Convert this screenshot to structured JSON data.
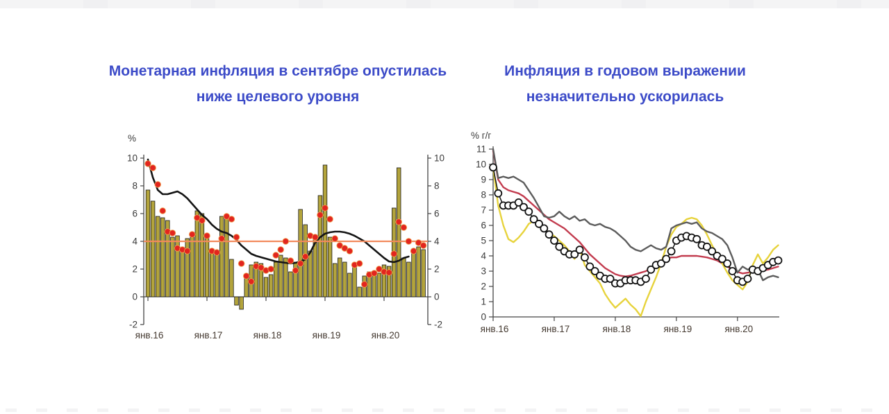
{
  "theme": {
    "title_color": "#3c4bc8",
    "axis_text_color": "#3a3a3a",
    "x_label_color": "#43382f",
    "background": "#ffffff"
  },
  "chart_data": [
    {
      "type": "bar",
      "title": "Монетарная инфляция в сентябре опустилась ниже целевого уровня",
      "ylabel": "%",
      "ylim": [
        -2,
        10
      ],
      "yticks": [
        10,
        8,
        6,
        4,
        2,
        0,
        -2
      ],
      "dual_y_axis": true,
      "grid": false,
      "legend": "none",
      "x_monthly_from": "янв.16",
      "x_monthly_to": "сен.20",
      "x_tick_labels": [
        "янв.16",
        "янв.17",
        "янв.18",
        "янв.19",
        "янв.20"
      ],
      "target_line": {
        "value": 4,
        "color": "#f28a5c"
      },
      "series": [
        {
          "name": "monthly-inflation-bars",
          "type": "bar",
          "color": "#b3a43c",
          "values": [
            7.7,
            6.9,
            5.8,
            5.7,
            5.5,
            4.3,
            4.4,
            3.5,
            4.2,
            4.3,
            6.2,
            6.0,
            4.2,
            3.4,
            3.3,
            5.8,
            5.9,
            2.7,
            -0.6,
            -0.9,
            1.6,
            2.3,
            2.5,
            2.4,
            1.4,
            1.6,
            2.5,
            3.0,
            2.8,
            1.8,
            2.5,
            6.3,
            5.2,
            3.3,
            4.4,
            7.3,
            9.5,
            4.3,
            2.4,
            2.8,
            2.5,
            1.7,
            2.2,
            0.7,
            1.5,
            1.8,
            1.6,
            1.7,
            2.3,
            2.2,
            6.4,
            9.3,
            2.8,
            2.5,
            3.2,
            3.6,
            3.4
          ]
        },
        {
          "name": "trend-line",
          "type": "line",
          "color": "#141414",
          "values": [
            9.9,
            8.6,
            7.7,
            7.4,
            7.4,
            7.5,
            7.6,
            7.4,
            7.1,
            6.7,
            6.3,
            5.9,
            5.6,
            5.2,
            4.9,
            4.7,
            4.6,
            4.4,
            4.1,
            3.7,
            3.4,
            3.1,
            2.95,
            2.85,
            2.75,
            2.65,
            2.55,
            2.5,
            2.45,
            2.4,
            2.45,
            2.55,
            2.7,
            3.2,
            3.9,
            4.3,
            4.55,
            4.65,
            4.7,
            4.7,
            4.65,
            4.55,
            4.4,
            4.2,
            4.0,
            3.7,
            3.4,
            3.1,
            2.8,
            2.55,
            2.5,
            2.6,
            2.8,
            2.9,
            null,
            null,
            null
          ]
        },
        {
          "name": "monthly-dots",
          "type": "scatter",
          "color": "#e2251f",
          "values": [
            9.6,
            9.3,
            8.1,
            6.2,
            4.7,
            4.6,
            3.5,
            3.4,
            3.3,
            4.5,
            5.7,
            5.5,
            4.4,
            3.3,
            3.2,
            4.2,
            5.8,
            5.6,
            4.3,
            2.4,
            1.5,
            1.1,
            2.2,
            2.1,
            1.9,
            2.0,
            3.0,
            3.4,
            4.0,
            2.6,
            1.9,
            2.4,
            2.9,
            4.4,
            4.3,
            5.9,
            6.4,
            5.6,
            4.2,
            3.7,
            3.5,
            3.3,
            2.3,
            2.4,
            0.9,
            1.6,
            1.7,
            2.0,
            1.8,
            1.75,
            3.1,
            5.4,
            5.0,
            4.0,
            3.3,
            3.9,
            3.7
          ]
        }
      ]
    },
    {
      "type": "line",
      "title": "Инфляция в годовом выражении незначительно ускорилась",
      "ylabel": "% г/г",
      "ylim": [
        0,
        11
      ],
      "yticks": [
        11,
        10,
        9,
        8,
        7,
        6,
        5,
        4,
        3,
        2,
        1,
        0
      ],
      "grid": false,
      "legend": "none",
      "x_monthly_from": "янв.16",
      "x_monthly_to": "сен.20",
      "x_tick_labels": [
        "янв.16",
        "янв.17",
        "янв.18",
        "янв.19",
        "янв.20"
      ],
      "series": [
        {
          "name": "red-line",
          "type": "line",
          "color": "#c23b4e",
          "values": [
            10.9,
            9.0,
            8.5,
            8.3,
            8.2,
            8.1,
            7.9,
            7.6,
            7.3,
            7.0,
            6.7,
            6.4,
            6.2,
            6.0,
            5.8,
            5.5,
            5.2,
            4.9,
            4.5,
            4.1,
            3.8,
            3.5,
            3.2,
            3.0,
            2.8,
            2.7,
            2.65,
            2.7,
            2.8,
            2.9,
            3.0,
            3.2,
            3.4,
            3.6,
            3.8,
            3.9,
            3.9,
            4.0,
            4.0,
            4.0,
            4.0,
            3.95,
            3.9,
            3.8,
            3.7,
            3.5,
            3.3,
            3.1,
            2.95,
            2.85,
            2.9,
            2.95,
            3.0,
            3.05,
            3.1,
            3.2,
            3.3
          ]
        },
        {
          "name": "yellow-line",
          "type": "line",
          "color": "#e7d33c",
          "values": [
            9.8,
            7.3,
            6.0,
            5.1,
            4.9,
            5.2,
            5.6,
            6.1,
            6.3,
            6.2,
            5.8,
            5.5,
            5.3,
            5.0,
            4.7,
            4.3,
            3.8,
            4.5,
            3.4,
            3.0,
            2.6,
            2.2,
            1.5,
            1.0,
            0.6,
            0.9,
            1.2,
            0.8,
            0.5,
            0.05,
            1.0,
            1.8,
            2.6,
            3.5,
            4.6,
            5.4,
            5.9,
            6.1,
            6.4,
            6.5,
            6.4,
            6.0,
            5.4,
            4.7,
            4.1,
            3.5,
            2.9,
            2.4,
            2.1,
            1.8,
            2.3,
            3.4,
            4.1,
            3.5,
            3.9,
            4.4,
            4.7
          ]
        },
        {
          "name": "gray-line",
          "type": "line",
          "color": "#5c5c5c",
          "values": [
            11.0,
            9.1,
            9.2,
            9.1,
            9.2,
            9.0,
            8.8,
            8.3,
            7.8,
            7.2,
            6.6,
            6.5,
            6.6,
            6.9,
            6.6,
            6.4,
            6.6,
            6.3,
            6.4,
            6.1,
            6.0,
            6.1,
            5.9,
            5.8,
            5.6,
            5.3,
            5.0,
            4.6,
            4.4,
            4.3,
            4.5,
            4.7,
            4.5,
            4.4,
            4.6,
            5.8,
            6.0,
            6.1,
            6.2,
            6.1,
            6.2,
            5.8,
            5.6,
            5.5,
            5.3,
            5.1,
            4.7,
            3.9,
            2.9,
            3.3,
            3.1,
            3.2,
            3.1,
            2.4,
            2.6,
            2.7,
            2.6
          ]
        },
        {
          "name": "cpi-circles",
          "type": "line+markers",
          "color": "#111111",
          "marker_fill": "#ffffff",
          "values": [
            9.8,
            8.1,
            7.3,
            7.3,
            7.3,
            7.5,
            7.2,
            6.9,
            6.4,
            6.1,
            5.8,
            5.4,
            5.0,
            4.6,
            4.3,
            4.1,
            4.1,
            4.4,
            3.9,
            3.3,
            3.0,
            2.7,
            2.5,
            2.5,
            2.2,
            2.2,
            2.4,
            2.4,
            2.4,
            2.3,
            2.5,
            3.1,
            3.4,
            3.5,
            3.8,
            4.3,
            5.0,
            5.2,
            5.3,
            5.2,
            5.1,
            4.7,
            4.6,
            4.3,
            4.0,
            3.8,
            3.5,
            3.0,
            2.4,
            2.3,
            2.5,
            3.1,
            3.0,
            3.2,
            3.4,
            3.6,
            3.7
          ]
        }
      ]
    }
  ]
}
